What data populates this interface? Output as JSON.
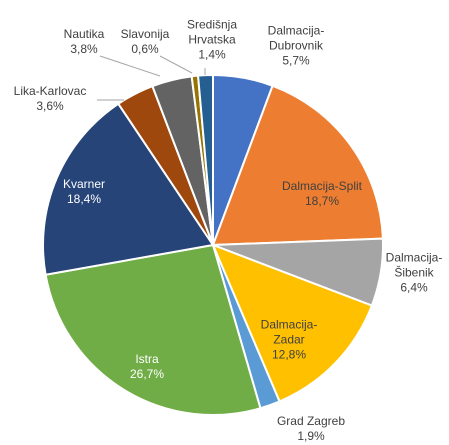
{
  "chart_data": {
    "type": "pie",
    "categories": [
      "Dalmacija-Dubrovnik",
      "Dalmacija-Split",
      "Dalmacija-Šibenik",
      "Dalmacija-Zadar",
      "Grad Zagreb",
      "Istra",
      "Kvarner",
      "Lika-Karlovac",
      "Nautika",
      "Slavonija",
      "Središnja Hrvatska"
    ],
    "values": [
      5.7,
      18.7,
      6.4,
      12.8,
      1.9,
      26.7,
      18.4,
      3.6,
      3.8,
      0.6,
      1.4
    ],
    "value_labels": [
      "5,7%",
      "18,7%",
      "6,4%",
      "12,8%",
      "1,9%",
      "26,7%",
      "18,4%",
      "3,6%",
      "3,8%",
      "0,6%",
      "1,4%"
    ],
    "colors": [
      "#4472c4",
      "#ed7d31",
      "#a5a5a5",
      "#ffc000",
      "#5b9bd5",
      "#70ad47",
      "#264478",
      "#9e480e",
      "#636363",
      "#997300",
      "#255e91"
    ]
  }
}
